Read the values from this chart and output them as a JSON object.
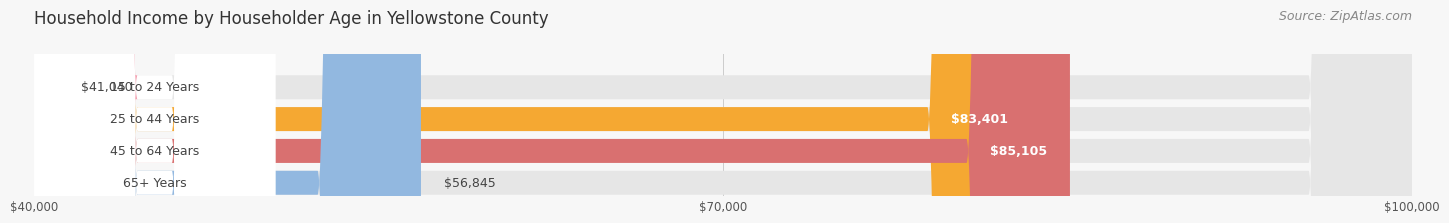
{
  "title": "Household Income by Householder Age in Yellowstone County",
  "source": "Source: ZipAtlas.com",
  "categories": [
    "15 to 24 Years",
    "25 to 44 Years",
    "45 to 64 Years",
    "65+ Years"
  ],
  "values": [
    41040,
    83401,
    85105,
    56845
  ],
  "bar_colors": [
    "#f4a0b0",
    "#f5a832",
    "#d97070",
    "#92b8e0"
  ],
  "bar_bg_color": "#e6e6e6",
  "label_bg_color": "#ffffff",
  "xmin": 40000,
  "xmax": 100000,
  "xticks": [
    40000,
    70000,
    100000
  ],
  "xtick_labels": [
    "$40,000",
    "$70,000",
    "$100,000"
  ],
  "title_fontsize": 12,
  "source_fontsize": 9,
  "label_fontsize": 9,
  "value_fontsize": 9,
  "background_color": "#f7f7f7"
}
